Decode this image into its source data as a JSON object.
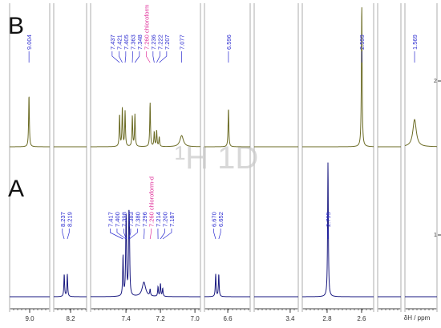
{
  "chart_data": {
    "type": "nmr-stack",
    "watermark": "¹H 1D",
    "x_label": "δH / ppm",
    "segments": [
      {
        "xlim": [
          9.116,
          8.884
        ],
        "xticks": [
          {
            "value": 9.0,
            "label": "9.0"
          }
        ]
      },
      {
        "xlim": [
          8.298,
          8.107
        ],
        "xticks": [
          {
            "value": 8.2,
            "label": "8.2"
          }
        ]
      },
      {
        "xlim": [
          7.605,
          6.968
        ],
        "xticks": [
          {
            "value": 7.4,
            "label": "7.4"
          },
          {
            "value": 7.2,
            "label": "7.2"
          },
          {
            "value": 7.0,
            "label": "7.0"
          }
        ]
      },
      {
        "xlim": [
          6.735,
          6.47
        ],
        "xticks": [
          {
            "value": 6.6,
            "label": "6.6"
          }
        ]
      },
      {
        "xlim": [
          3.609,
          3.353
        ],
        "xticks": [
          {
            "value": 3.4,
            "label": "3.4"
          }
        ]
      },
      {
        "xlim": [
          2.944,
          2.53
        ],
        "xticks": [
          {
            "value": 2.8,
            "label": "2.8"
          },
          {
            "value": 2.6,
            "label": "2.6"
          }
        ]
      },
      {
        "xlim": [
          2.1,
          1.965
        ],
        "xticks": []
      },
      {
        "xlim": [
          1.625,
          1.439
        ],
        "xticks": []
      }
    ],
    "series": [
      {
        "name": "B",
        "index": "2",
        "color": "#6b6b24",
        "peaks": [
          {
            "shift": 9.004,
            "label": "9.004",
            "height": 65
          },
          {
            "shift": 7.437,
            "label": "7.437",
            "height": 40
          },
          {
            "shift": 7.421,
            "label": "7.421",
            "height": 48
          },
          {
            "shift": 7.405,
            "label": "7.405",
            "height": 44
          },
          {
            "shift": 7.363,
            "label": "7.363",
            "height": 38
          },
          {
            "shift": 7.348,
            "label": "7.348",
            "height": 40
          },
          {
            "shift": 7.26,
            "label": "7.260 chloroform",
            "height": 55,
            "solvent": true
          },
          {
            "shift": 7.236,
            "label": "7.236",
            "height": 18
          },
          {
            "shift": 7.222,
            "label": "7.222",
            "height": 20
          },
          {
            "shift": 7.207,
            "label": "7.207",
            "height": 12
          },
          {
            "shift": 7.077,
            "label": "7.077",
            "height": 14,
            "broad": true
          },
          {
            "shift": 6.596,
            "label": "6.596",
            "height": 48
          },
          {
            "shift": 2.599,
            "label": "2.599",
            "height": 178
          },
          {
            "shift": 1.569,
            "label": "1.569",
            "height": 34,
            "broad": true
          }
        ]
      },
      {
        "name": "A",
        "index": "1",
        "color": "#1a1a80",
        "peaks": [
          {
            "shift": 8.237,
            "label": "8.237",
            "height": 28
          },
          {
            "shift": 8.219,
            "label": "8.219",
            "height": 28
          },
          {
            "shift": 7.417,
            "label": "7.417",
            "height": 50
          },
          {
            "shift": 7.4,
            "label": "7.400",
            "height": 60
          },
          {
            "shift": 7.398,
            "label": "7.398",
            "height": 55
          },
          {
            "shift": 7.383,
            "label": "7.383",
            "height": 80
          },
          {
            "shift": 7.38,
            "label": "7.380",
            "height": 60
          },
          {
            "shift": 7.296,
            "label": "7.296",
            "height": 18,
            "broad": true
          },
          {
            "shift": 7.26,
            "label": "7.260 chloroform-d",
            "height": 8,
            "solvent": true
          },
          {
            "shift": 7.214,
            "label": "7.214",
            "height": 12
          },
          {
            "shift": 7.2,
            "label": "7.200",
            "height": 16
          },
          {
            "shift": 7.187,
            "label": "7.187",
            "height": 10
          },
          {
            "shift": 6.67,
            "label": "6.670",
            "height": 28
          },
          {
            "shift": 6.652,
            "label": "6.652",
            "height": 28
          },
          {
            "shift": 2.795,
            "label": "2.795",
            "height": 168
          }
        ]
      }
    ]
  }
}
